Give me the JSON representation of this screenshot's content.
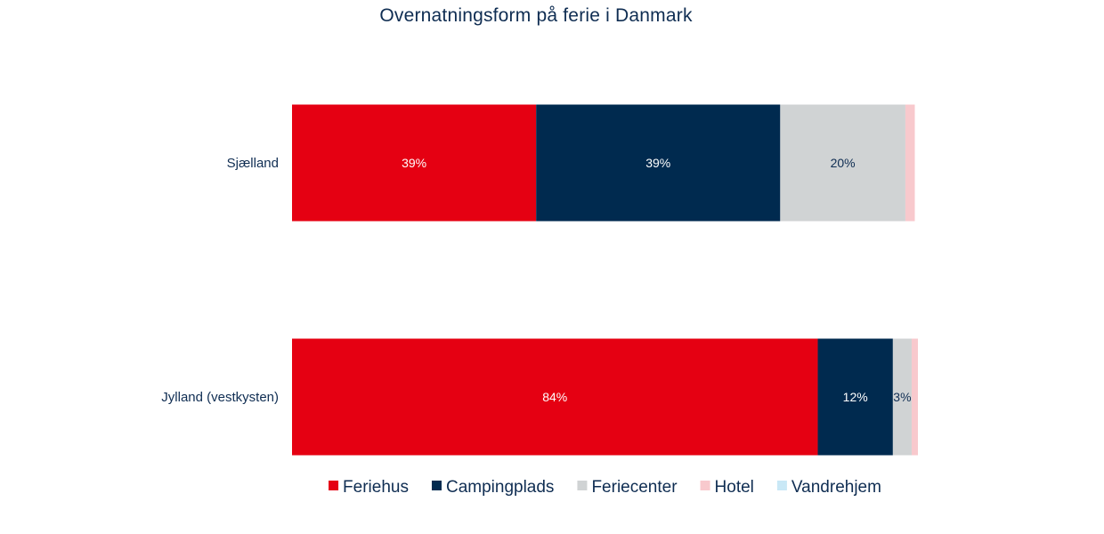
{
  "chart_data": {
    "type": "bar",
    "orientation": "horizontal",
    "stacked": true,
    "percent_stacked": true,
    "title": "Overnatningsform på ferie i Danmark",
    "categories": [
      "Sjælland",
      "Jylland (vestkysten)"
    ],
    "series": [
      {
        "name": "Feriehus",
        "color": "#e50012",
        "label_color": "#ffffff",
        "values": [
          39,
          84
        ],
        "labels": [
          "39%",
          "84%"
        ]
      },
      {
        "name": "Campingplads",
        "color": "#002a4f",
        "label_color": "#ffffff",
        "values": [
          39,
          12
        ],
        "labels": [
          "39%",
          "12%"
        ]
      },
      {
        "name": "Feriecenter",
        "color": "#d0d3d4",
        "label_color": "#0f2d52",
        "values": [
          20,
          3
        ],
        "labels": [
          "20%",
          "3%"
        ]
      },
      {
        "name": "Hotel",
        "color": "#f8c9cd",
        "label_color": "#0f2d52",
        "values": [
          1.5,
          1.2
        ],
        "labels": [
          "",
          ""
        ]
      },
      {
        "name": "Vandrehjem",
        "color": "#c9e8f6",
        "label_color": "#0f2d52",
        "values": [
          0,
          0
        ],
        "labels": [
          "",
          ""
        ]
      }
    ],
    "xlim": [
      0,
      100
    ],
    "legend_position": "bottom",
    "grid": false,
    "colors": {
      "title": "#0f2d52",
      "category_label": "#0f2d52",
      "legend_text": "#0f2d52"
    }
  }
}
